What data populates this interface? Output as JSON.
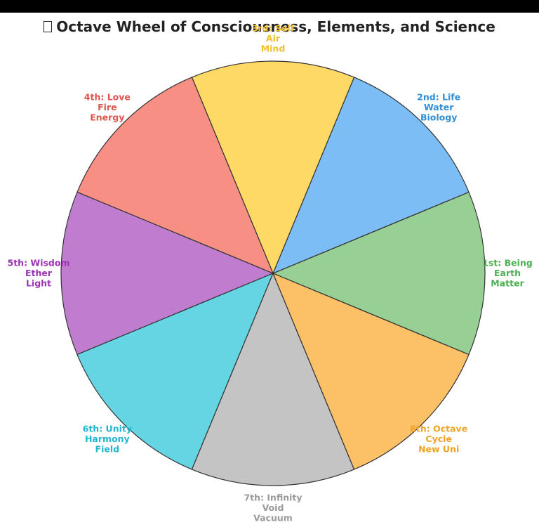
{
  "window": {
    "title_glyph": "glyph-icon"
  },
  "chart_data": {
    "type": "pie",
    "title": "Octave Wheel of Consciousness, Elements, and Science",
    "categories": [
      "1st: Being",
      "2nd: Life",
      "3rd: Self",
      "4th: Love",
      "5th: Wisdom",
      "6th: Unity",
      "7th: Infinity",
      "8th: Octave"
    ],
    "values": [
      1,
      1,
      1,
      1,
      1,
      1,
      1,
      1
    ],
    "slices": [
      {
        "label": [
          "1st: Being",
          "Earth",
          "Matter"
        ],
        "color": "#97CF94",
        "text_color": "#4CAF50"
      },
      {
        "label": [
          "2nd: Life",
          "Water",
          "Biology"
        ],
        "color": "#7BBDF4",
        "text_color": "#2E8ED6"
      },
      {
        "label": [
          "3rd: Self",
          "Air",
          "Mind"
        ],
        "color": "#FFD966",
        "text_color": "#F1BF2B"
      },
      {
        "label": [
          "4th: Love",
          "Fire",
          "Energy"
        ],
        "color": "#F88F85",
        "text_color": "#E0544B"
      },
      {
        "label": [
          "5th: Wisdom",
          "Ether",
          "Light"
        ],
        "color": "#C07DCF",
        "text_color": "#9C33B0"
      },
      {
        "label": [
          "6th: Unity",
          "Harmony",
          "Field"
        ],
        "color": "#65D5E3",
        "text_color": "#21B8CF"
      },
      {
        "label": [
          "7th: Infinity",
          "Void",
          "Vacuum"
        ],
        "color": "#C4C4C4",
        "text_color": "#9A9A9A"
      },
      {
        "label": [
          "8th: Octave",
          "Cycle",
          "New Uni"
        ],
        "color": "#FCC066",
        "text_color": "#F0A226"
      }
    ],
    "start_angle_deg": 337.5,
    "direction": "counterclockwise",
    "edge_color": "#333333"
  }
}
